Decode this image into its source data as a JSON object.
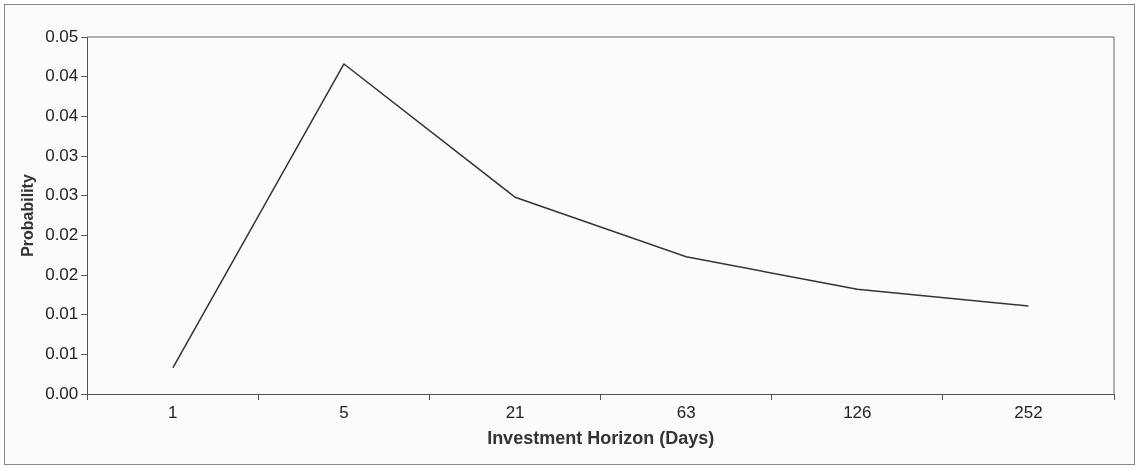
{
  "chart_data": {
    "type": "line",
    "xlabel": "Investment Horizon (Days)",
    "ylabel": "Probability",
    "categories": [
      "1",
      "5",
      "21",
      "63",
      "126",
      "252"
    ],
    "series": [
      {
        "color": "#333333",
        "values": [
          0.0033,
          0.0416,
          0.0248,
          0.0173,
          0.0132,
          0.0111
        ]
      }
    ],
    "ylim": [
      0,
      0.045
    ],
    "yticks": [
      {
        "value": 0,
        "label": "0.00"
      },
      {
        "value": 0.005,
        "label": "0.01"
      },
      {
        "value": 0.01,
        "label": "0.01"
      },
      {
        "value": 0.015,
        "label": "0.02"
      },
      {
        "value": 0.02,
        "label": "0.02"
      },
      {
        "value": 0.025,
        "label": "0.03"
      },
      {
        "value": 0.03,
        "label": "0.03"
      },
      {
        "value": 0.035,
        "label": "0.04"
      },
      {
        "value": 0.04,
        "label": "0.04"
      },
      {
        "value": 0.045,
        "label": "0.05"
      }
    ],
    "grid": false,
    "legend": false,
    "marker": "none",
    "line_style": "solid"
  }
}
